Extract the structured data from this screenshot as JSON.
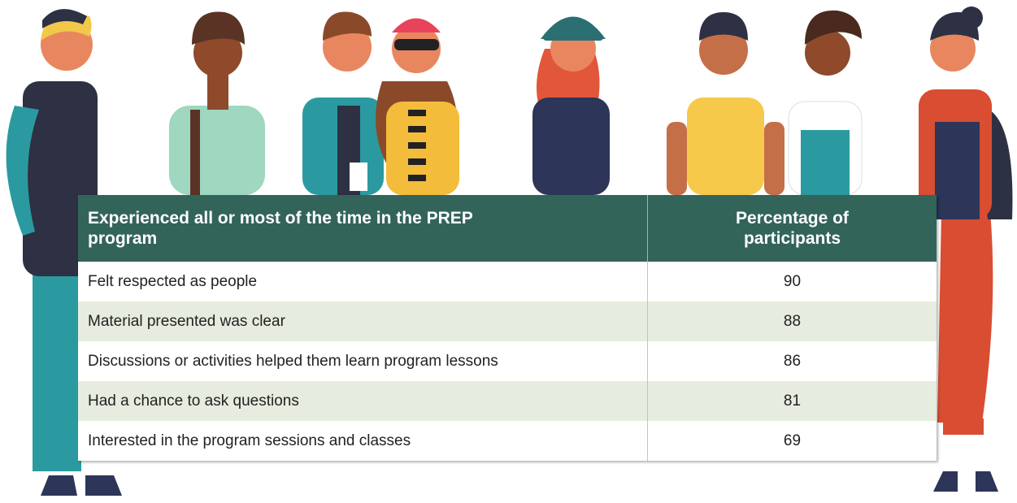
{
  "table": {
    "header": [
      "Experienced all or most of the time in the PREP program",
      "Percentage of participants"
    ],
    "rows": [
      [
        "Felt respected as people",
        "90"
      ],
      [
        "Material presented was clear",
        "88"
      ],
      [
        "Discussions or activities helped them learn program lessons",
        "86"
      ],
      [
        "Had a chance to ask questions",
        "81"
      ],
      [
        "Interested in the program sessions and classes",
        "69"
      ]
    ]
  }
}
